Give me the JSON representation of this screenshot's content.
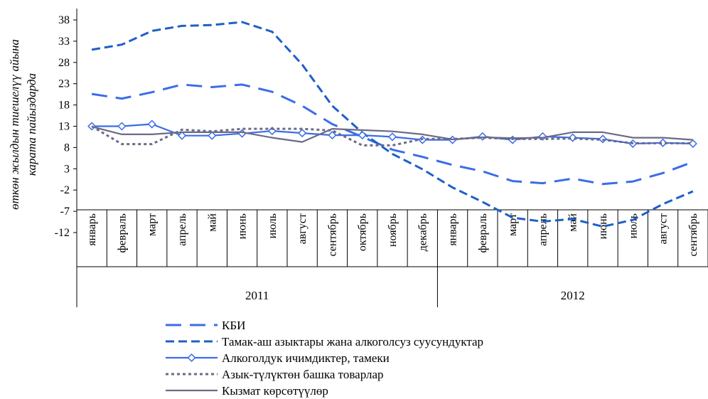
{
  "chart_data": {
    "type": "line",
    "ylabel": [
      "өткөн жылдын тиешелүү айына",
      "карата пайыздарда"
    ],
    "ylim": [
      -12,
      40
    ],
    "yticks": [
      38,
      33,
      28,
      23,
      18,
      13,
      8,
      3,
      -2,
      -7,
      -12
    ],
    "categories": [
      "январь",
      "февраль",
      "март",
      "апрель",
      "май",
      "июнь",
      "июль",
      "август",
      "сентябрь",
      "октябрь",
      "ноябрь",
      "декабрь",
      "январь",
      "февраль",
      "март",
      "апрель",
      "май",
      "июнь",
      "июль",
      "август",
      "сентябрь"
    ],
    "year_groups": [
      {
        "label": "2011",
        "start": 0,
        "end": 11
      },
      {
        "label": "2012",
        "start": 12,
        "end": 20
      }
    ],
    "legend_position": "bottom",
    "series": [
      {
        "name": "КБИ",
        "style": "longdash",
        "color": "#3a6de8",
        "marker": "none",
        "values": [
          20.6,
          19.5,
          21.0,
          22.8,
          22.2,
          22.8,
          21.1,
          17.8,
          13.5,
          10.5,
          7.5,
          5.8,
          3.9,
          2.4,
          0.1,
          -0.4,
          0.7,
          -0.6,
          0.0,
          2.0,
          4.6
        ]
      },
      {
        "name": "Тамак-аш азыктары жана алкоголсуз суусундуктар",
        "style": "dash",
        "color": "#1f5fc8",
        "marker": "none",
        "values": [
          31.0,
          32.2,
          35.4,
          36.6,
          36.8,
          37.5,
          35.2,
          27.5,
          17.8,
          11.5,
          6.5,
          2.9,
          -1.4,
          -4.8,
          -8.5,
          -9.4,
          -8.8,
          -10.6,
          -9.0,
          -5.3,
          -2.3
        ]
      },
      {
        "name": "Алкоголдук ичимдиктер, тамеки",
        "style": "solid",
        "color": "#3a6de8",
        "marker": "diamond",
        "values": [
          13.0,
          13.0,
          13.5,
          10.8,
          10.8,
          11.3,
          11.9,
          11.4,
          10.9,
          10.9,
          10.5,
          9.8,
          9.8,
          10.6,
          9.8,
          10.6,
          10.3,
          10.0,
          8.9,
          9.1,
          8.9
        ]
      },
      {
        "name": "Азык-түлүктөн башка товарлар",
        "style": "dot",
        "color": "#6c6a86",
        "marker": "none",
        "values": [
          13.0,
          8.8,
          8.8,
          12.2,
          11.8,
          12.4,
          12.4,
          12.4,
          12.0,
          8.5,
          8.5,
          10.0,
          10.0,
          10.3,
          10.0,
          10.0,
          10.1,
          9.8,
          9.0,
          9.0,
          9.0
        ]
      },
      {
        "name": "Кызмат көрсөтүүлөр",
        "style": "solid",
        "color": "#6c6a86",
        "marker": "none",
        "values": [
          12.9,
          11.1,
          11.1,
          11.6,
          11.6,
          11.6,
          10.3,
          9.3,
          12.4,
          12.1,
          11.8,
          11.1,
          9.9,
          10.4,
          10.2,
          10.3,
          11.6,
          11.6,
          10.3,
          10.3,
          9.8
        ]
      }
    ]
  }
}
